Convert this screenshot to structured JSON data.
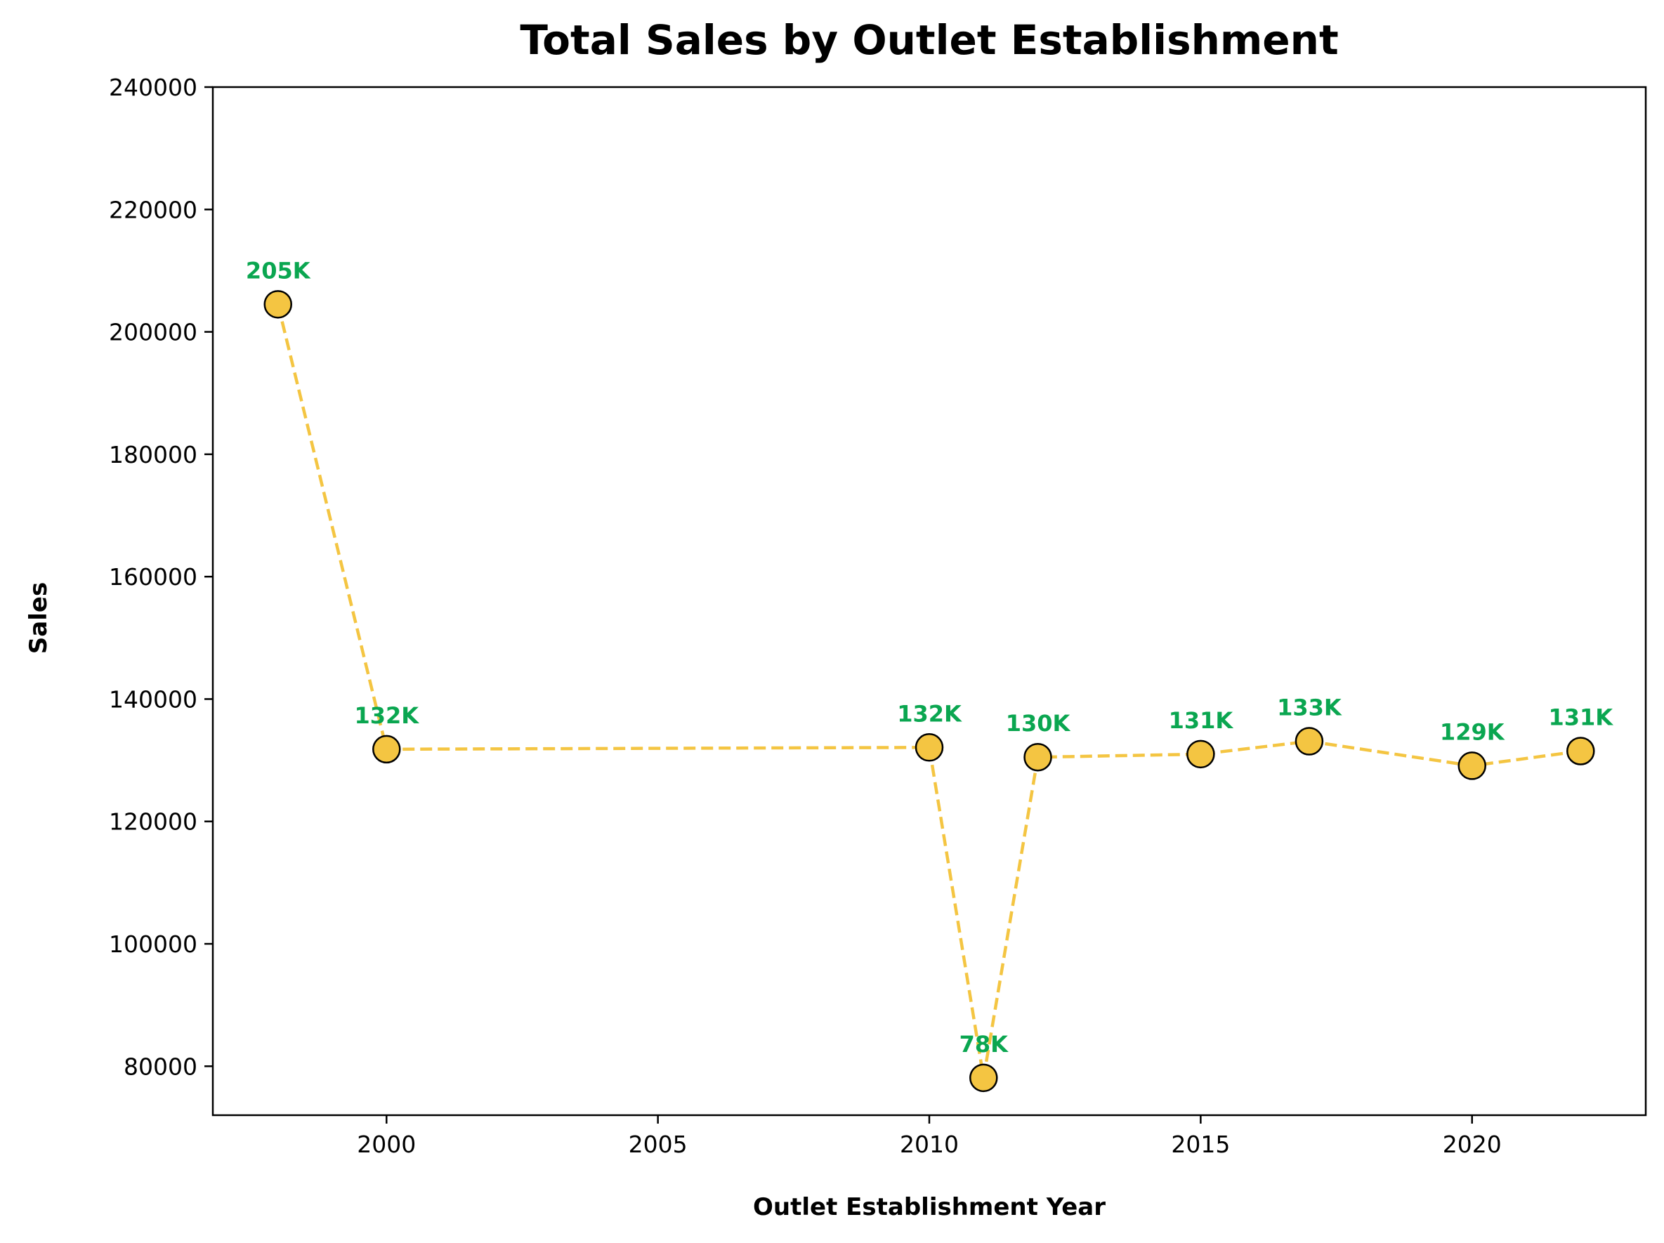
{
  "colors": {
    "line": "#F4C542",
    "marker_fill": "#F4C542",
    "marker_edge": "#000000",
    "data_label": "#0AA650",
    "axis": "#000000"
  },
  "chart_data": {
    "type": "line",
    "title": "Total Sales by Outlet Establishment",
    "xlabel": "Outlet Establishment Year",
    "ylabel": "Sales",
    "xlim": [
      1996.8,
      2023.2
    ],
    "ylim": [
      72000,
      240000
    ],
    "xticks": [
      2000,
      2005,
      2010,
      2015,
      2020
    ],
    "yticks": [
      80000,
      100000,
      120000,
      140000,
      160000,
      180000,
      200000,
      220000,
      240000
    ],
    "grid": false,
    "line_style": "dashed",
    "series": [
      {
        "x": [
          1998,
          2000,
          2010,
          2011,
          2012,
          2015,
          2017,
          2020,
          2022
        ],
        "y": [
          204500,
          131800,
          132100,
          78100,
          130500,
          131000,
          133100,
          129100,
          131500
        ],
        "labels": [
          "205K",
          "132K",
          "132K",
          "78K",
          "130K",
          "131K",
          "133K",
          "129K",
          "131K"
        ]
      }
    ]
  }
}
